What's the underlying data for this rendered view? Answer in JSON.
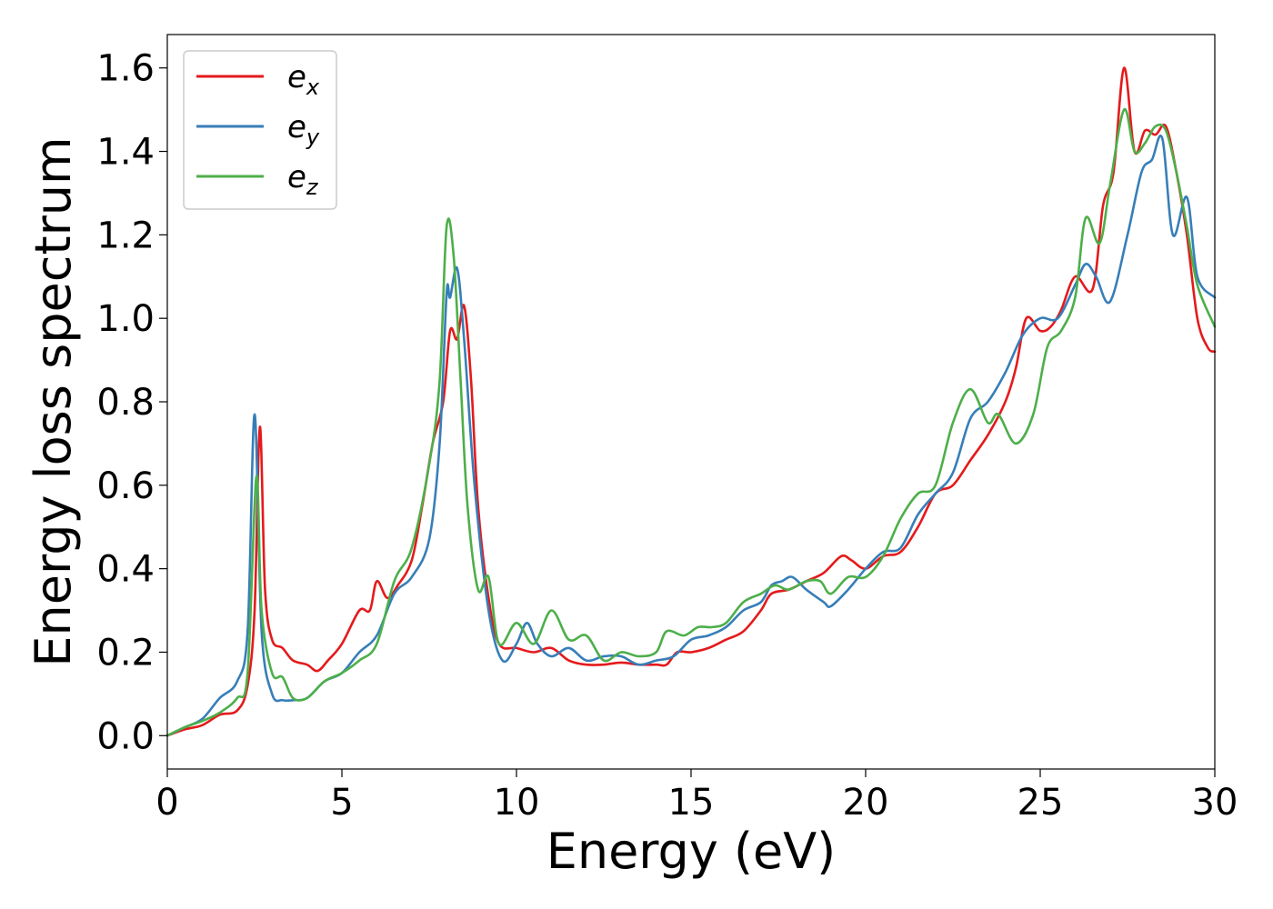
{
  "chart_data": {
    "type": "line",
    "title": "",
    "xlabel": "Energy (eV)",
    "ylabel": "Energy loss spectrum",
    "xlim": [
      0,
      30
    ],
    "ylim": [
      -0.08,
      1.68
    ],
    "xticks": [
      0,
      5,
      10,
      15,
      20,
      25,
      30
    ],
    "xtick_labels": [
      "0",
      "5",
      "10",
      "15",
      "20",
      "25",
      "30"
    ],
    "yticks": [
      0.0,
      0.2,
      0.4,
      0.6,
      0.8,
      1.0,
      1.2,
      1.4,
      1.6
    ],
    "ytick_labels": [
      "0.0",
      "0.2",
      "0.4",
      "0.6",
      "0.8",
      "1.0",
      "1.2",
      "1.4",
      "1.6"
    ],
    "grid": false,
    "legend": {
      "position": "top-left"
    },
    "series": [
      {
        "name": "e_x",
        "label_main": "e",
        "label_sub": "x",
        "color": "#e41a1c",
        "points": [
          [
            0,
            0
          ],
          [
            0.5,
            0.015
          ],
          [
            1,
            0.025
          ],
          [
            1.5,
            0.05
          ],
          [
            2,
            0.06
          ],
          [
            2.3,
            0.12
          ],
          [
            2.5,
            0.3
          ],
          [
            2.65,
            0.74
          ],
          [
            2.8,
            0.35
          ],
          [
            3,
            0.23
          ],
          [
            3.3,
            0.21
          ],
          [
            3.6,
            0.18
          ],
          [
            4,
            0.17
          ],
          [
            4.3,
            0.155
          ],
          [
            4.6,
            0.18
          ],
          [
            5,
            0.22
          ],
          [
            5.5,
            0.3
          ],
          [
            5.8,
            0.3
          ],
          [
            6,
            0.37
          ],
          [
            6.3,
            0.33
          ],
          [
            6.6,
            0.36
          ],
          [
            7,
            0.42
          ],
          [
            7.3,
            0.55
          ],
          [
            7.6,
            0.7
          ],
          [
            7.9,
            0.8
          ],
          [
            8.1,
            0.97
          ],
          [
            8.3,
            0.95
          ],
          [
            8.5,
            1.03
          ],
          [
            8.7,
            0.85
          ],
          [
            8.9,
            0.55
          ],
          [
            9.2,
            0.33
          ],
          [
            9.5,
            0.22
          ],
          [
            10,
            0.21
          ],
          [
            10.5,
            0.2
          ],
          [
            11,
            0.21
          ],
          [
            11.5,
            0.18
          ],
          [
            12,
            0.17
          ],
          [
            12.5,
            0.17
          ],
          [
            13,
            0.175
          ],
          [
            13.5,
            0.17
          ],
          [
            14,
            0.17
          ],
          [
            14.3,
            0.17
          ],
          [
            14.6,
            0.2
          ],
          [
            15,
            0.2
          ],
          [
            15.5,
            0.21
          ],
          [
            16,
            0.23
          ],
          [
            16.5,
            0.25
          ],
          [
            17,
            0.3
          ],
          [
            17.3,
            0.34
          ],
          [
            17.8,
            0.35
          ],
          [
            18.3,
            0.37
          ],
          [
            18.8,
            0.39
          ],
          [
            19.3,
            0.43
          ],
          [
            19.6,
            0.42
          ],
          [
            20,
            0.4
          ],
          [
            20.5,
            0.43
          ],
          [
            21,
            0.44
          ],
          [
            21.5,
            0.5
          ],
          [
            22,
            0.58
          ],
          [
            22.5,
            0.6
          ],
          [
            23,
            0.66
          ],
          [
            23.5,
            0.72
          ],
          [
            24,
            0.8
          ],
          [
            24.3,
            0.88
          ],
          [
            24.6,
            1.0
          ],
          [
            25,
            0.97
          ],
          [
            25.3,
            0.98
          ],
          [
            25.6,
            1.02
          ],
          [
            26,
            1.1
          ],
          [
            26.5,
            1.07
          ],
          [
            26.8,
            1.27
          ],
          [
            27.1,
            1.35
          ],
          [
            27.4,
            1.6
          ],
          [
            27.7,
            1.4
          ],
          [
            28,
            1.45
          ],
          [
            28.3,
            1.44
          ],
          [
            28.6,
            1.46
          ],
          [
            28.9,
            1.35
          ],
          [
            29.2,
            1.2
          ],
          [
            29.5,
            1.0
          ],
          [
            29.8,
            0.93
          ],
          [
            30,
            0.92
          ]
        ]
      },
      {
        "name": "e_y",
        "label_main": "e",
        "label_sub": "y",
        "color": "#377eb8",
        "points": [
          [
            0,
            0
          ],
          [
            0.5,
            0.02
          ],
          [
            1,
            0.04
          ],
          [
            1.5,
            0.09
          ],
          [
            2,
            0.13
          ],
          [
            2.3,
            0.25
          ],
          [
            2.5,
            0.77
          ],
          [
            2.7,
            0.25
          ],
          [
            3,
            0.1
          ],
          [
            3.3,
            0.085
          ],
          [
            3.6,
            0.085
          ],
          [
            4,
            0.09
          ],
          [
            4.5,
            0.13
          ],
          [
            5,
            0.15
          ],
          [
            5.5,
            0.2
          ],
          [
            6,
            0.24
          ],
          [
            6.5,
            0.34
          ],
          [
            7,
            0.38
          ],
          [
            7.5,
            0.47
          ],
          [
            7.8,
            0.7
          ],
          [
            8,
            1.06
          ],
          [
            8.1,
            1.05
          ],
          [
            8.3,
            1.12
          ],
          [
            8.5,
            0.95
          ],
          [
            8.8,
            0.6
          ],
          [
            9.2,
            0.3
          ],
          [
            9.6,
            0.18
          ],
          [
            10,
            0.22
          ],
          [
            10.3,
            0.27
          ],
          [
            10.6,
            0.22
          ],
          [
            11,
            0.19
          ],
          [
            11.5,
            0.21
          ],
          [
            12,
            0.18
          ],
          [
            12.5,
            0.19
          ],
          [
            13,
            0.19
          ],
          [
            13.5,
            0.17
          ],
          [
            14,
            0.18
          ],
          [
            14.5,
            0.19
          ],
          [
            15,
            0.23
          ],
          [
            15.5,
            0.24
          ],
          [
            16,
            0.26
          ],
          [
            16.5,
            0.3
          ],
          [
            17,
            0.32
          ],
          [
            17.3,
            0.36
          ],
          [
            17.6,
            0.37
          ],
          [
            17.9,
            0.38
          ],
          [
            18.3,
            0.35
          ],
          [
            18.8,
            0.32
          ],
          [
            19,
            0.31
          ],
          [
            19.5,
            0.35
          ],
          [
            20,
            0.4
          ],
          [
            20.5,
            0.44
          ],
          [
            21,
            0.45
          ],
          [
            21.5,
            0.53
          ],
          [
            22,
            0.58
          ],
          [
            22.5,
            0.63
          ],
          [
            23,
            0.76
          ],
          [
            23.5,
            0.8
          ],
          [
            24,
            0.87
          ],
          [
            24.5,
            0.96
          ],
          [
            25,
            1.0
          ],
          [
            25.5,
            1.0
          ],
          [
            26,
            1.08
          ],
          [
            26.3,
            1.13
          ],
          [
            26.6,
            1.1
          ],
          [
            27,
            1.04
          ],
          [
            27.5,
            1.2
          ],
          [
            27.9,
            1.35
          ],
          [
            28.2,
            1.38
          ],
          [
            28.5,
            1.43
          ],
          [
            28.8,
            1.2
          ],
          [
            29.2,
            1.29
          ],
          [
            29.5,
            1.1
          ],
          [
            30,
            1.05
          ]
        ]
      },
      {
        "name": "e_z",
        "label_main": "e",
        "label_sub": "z",
        "color": "#4daf4a",
        "points": [
          [
            0,
            0
          ],
          [
            0.5,
            0.02
          ],
          [
            1,
            0.035
          ],
          [
            1.5,
            0.055
          ],
          [
            2,
            0.09
          ],
          [
            2.3,
            0.15
          ],
          [
            2.55,
            0.62
          ],
          [
            2.7,
            0.3
          ],
          [
            3,
            0.15
          ],
          [
            3.3,
            0.14
          ],
          [
            3.6,
            0.09
          ],
          [
            4,
            0.09
          ],
          [
            4.5,
            0.13
          ],
          [
            5,
            0.15
          ],
          [
            5.5,
            0.18
          ],
          [
            6,
            0.22
          ],
          [
            6.5,
            0.37
          ],
          [
            7,
            0.45
          ],
          [
            7.5,
            0.65
          ],
          [
            7.8,
            0.85
          ],
          [
            8,
            1.22
          ],
          [
            8.2,
            1.15
          ],
          [
            8.4,
            0.85
          ],
          [
            8.6,
            0.55
          ],
          [
            8.9,
            0.35
          ],
          [
            9.2,
            0.38
          ],
          [
            9.5,
            0.22
          ],
          [
            10,
            0.27
          ],
          [
            10.5,
            0.22
          ],
          [
            11,
            0.3
          ],
          [
            11.5,
            0.23
          ],
          [
            12,
            0.24
          ],
          [
            12.5,
            0.18
          ],
          [
            13,
            0.2
          ],
          [
            13.5,
            0.19
          ],
          [
            14,
            0.2
          ],
          [
            14.3,
            0.25
          ],
          [
            14.8,
            0.24
          ],
          [
            15.2,
            0.26
          ],
          [
            15.6,
            0.26
          ],
          [
            16,
            0.27
          ],
          [
            16.5,
            0.32
          ],
          [
            17,
            0.34
          ],
          [
            17.4,
            0.36
          ],
          [
            17.8,
            0.35
          ],
          [
            18.3,
            0.37
          ],
          [
            18.7,
            0.37
          ],
          [
            19,
            0.34
          ],
          [
            19.5,
            0.38
          ],
          [
            20,
            0.38
          ],
          [
            20.5,
            0.43
          ],
          [
            21,
            0.52
          ],
          [
            21.5,
            0.58
          ],
          [
            22,
            0.6
          ],
          [
            22.5,
            0.75
          ],
          [
            23,
            0.83
          ],
          [
            23.5,
            0.75
          ],
          [
            23.8,
            0.77
          ],
          [
            24.3,
            0.7
          ],
          [
            24.8,
            0.77
          ],
          [
            25.2,
            0.93
          ],
          [
            25.6,
            0.97
          ],
          [
            26,
            1.05
          ],
          [
            26.3,
            1.24
          ],
          [
            26.7,
            1.18
          ],
          [
            27,
            1.32
          ],
          [
            27.4,
            1.5
          ],
          [
            27.7,
            1.4
          ],
          [
            28,
            1.42
          ],
          [
            28.3,
            1.46
          ],
          [
            28.6,
            1.45
          ],
          [
            28.9,
            1.35
          ],
          [
            29.2,
            1.22
          ],
          [
            29.5,
            1.08
          ],
          [
            30,
            0.98
          ]
        ]
      }
    ]
  }
}
